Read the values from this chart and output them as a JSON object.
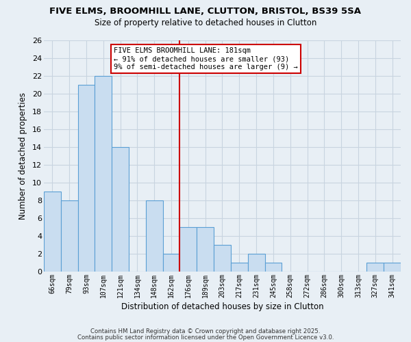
{
  "title": "FIVE ELMS, BROOMHILL LANE, CLUTTON, BRISTOL, BS39 5SA",
  "subtitle": "Size of property relative to detached houses in Clutton",
  "xlabel": "Distribution of detached houses by size in Clutton",
  "ylabel": "Number of detached properties",
  "bar_labels": [
    "66sqm",
    "79sqm",
    "93sqm",
    "107sqm",
    "121sqm",
    "134sqm",
    "148sqm",
    "162sqm",
    "176sqm",
    "189sqm",
    "203sqm",
    "217sqm",
    "231sqm",
    "245sqm",
    "258sqm",
    "272sqm",
    "286sqm",
    "300sqm",
    "313sqm",
    "327sqm",
    "341sqm"
  ],
  "bar_values": [
    9,
    8,
    21,
    22,
    14,
    0,
    8,
    2,
    5,
    5,
    3,
    1,
    2,
    1,
    0,
    0,
    0,
    0,
    0,
    1,
    1
  ],
  "bar_color": "#c9ddf0",
  "bar_edge_color": "#5a9fd4",
  "ylim": [
    0,
    26
  ],
  "yticks": [
    0,
    2,
    4,
    6,
    8,
    10,
    12,
    14,
    16,
    18,
    20,
    22,
    24,
    26
  ],
  "vline_color": "#cc0000",
  "annotation_title": "FIVE ELMS BROOMHILL LANE: 181sqm",
  "annotation_line1": "← 91% of detached houses are smaller (93)",
  "annotation_line2": "9% of semi-detached houses are larger (9) →",
  "annotation_box_color": "#ffffff",
  "annotation_box_edge": "#cc0000",
  "grid_color": "#c8d4e0",
  "background_color": "#e8eff5",
  "footer_line1": "Contains HM Land Registry data © Crown copyright and database right 2025.",
  "footer_line2": "Contains public sector information licensed under the Open Government Licence v3.0."
}
